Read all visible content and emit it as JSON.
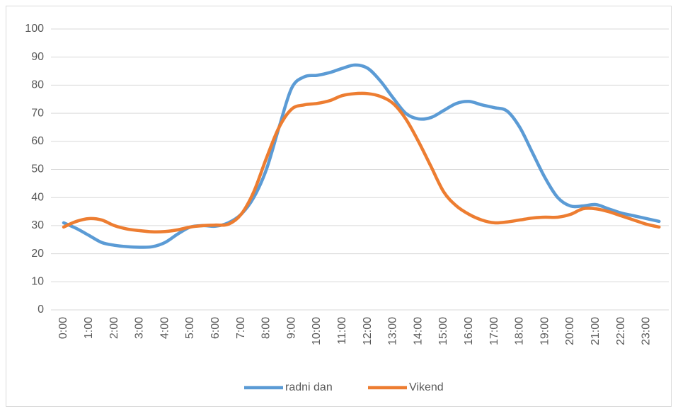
{
  "chart_data": {
    "type": "line",
    "categories": [
      "0:00",
      null,
      "1:00",
      null,
      "2:00",
      null,
      "3:00",
      null,
      "4:00",
      null,
      "5:00",
      null,
      "6:00",
      null,
      "7:00",
      null,
      "8:00",
      null,
      "9:00",
      null,
      "10:00",
      null,
      "11:00",
      null,
      "12:00",
      null,
      "13:00",
      null,
      "14:00",
      null,
      "15:00",
      null,
      "16:00",
      null,
      "17:00",
      null,
      "18:00",
      null,
      "19:00",
      null,
      "20:00",
      null,
      "21:00",
      null,
      "22:00",
      null,
      "23:00",
      null
    ],
    "series": [
      {
        "name": "radni dan",
        "color": "#5b9bd5",
        "values": [
          31,
          29,
          26.5,
          24,
          23,
          22.5,
          22.3,
          22.5,
          24,
          27,
          29.5,
          30,
          29.8,
          31,
          34,
          40,
          50,
          65,
          79,
          83,
          83.5,
          84.5,
          86,
          87.2,
          86,
          81.5,
          75.5,
          70,
          68,
          68.5,
          71,
          73.5,
          74.2,
          73,
          72,
          70.8,
          65,
          56,
          47,
          40,
          37,
          37,
          37.5,
          36,
          34.5,
          33.5,
          32.5,
          31.5
        ]
      },
      {
        "name": "Vikend",
        "color": "#ed7d31",
        "values": [
          29.5,
          31.5,
          32.5,
          32,
          30,
          28.8,
          28.2,
          27.8,
          27.9,
          28.5,
          29.5,
          30,
          30.2,
          30.5,
          34,
          42,
          54,
          65,
          71.5,
          73,
          73.5,
          74.5,
          76.3,
          77,
          77,
          76,
          73.5,
          68,
          60,
          51,
          42,
          37,
          34,
          32,
          31,
          31.3,
          32,
          32.7,
          33,
          33,
          34,
          36,
          36,
          35,
          33.5,
          32,
          30.5,
          29.5
        ]
      }
    ],
    "ylim": [
      0,
      100
    ],
    "yticks": [
      0,
      10,
      20,
      30,
      40,
      50,
      60,
      70,
      80,
      90,
      100
    ],
    "grid": true,
    "legend": "bottom"
  }
}
